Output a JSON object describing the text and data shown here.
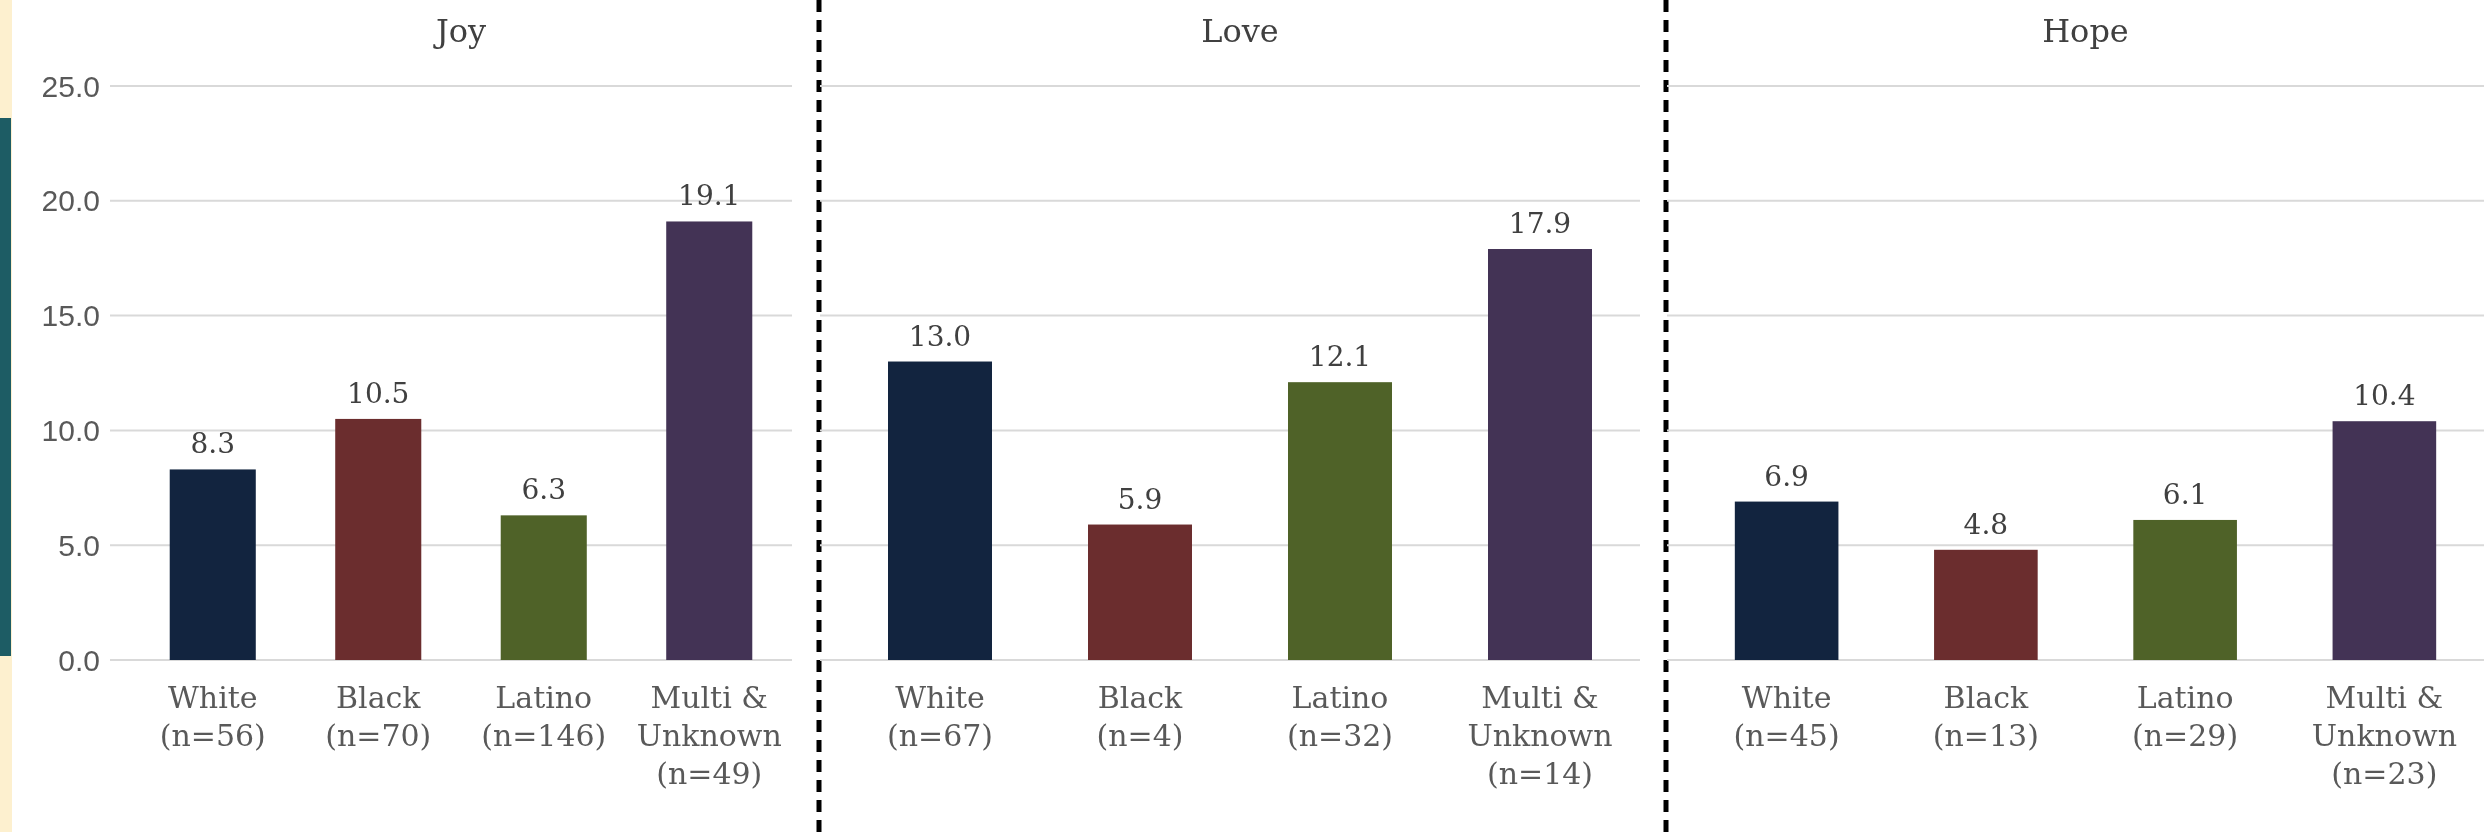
{
  "chart_data": [
    {
      "type": "bar",
      "title": "Joy",
      "categories": [
        "White\n(n=56)",
        "Black\n(n=70)",
        "Latino\n(n=146)",
        "Multi &\nUnknown\n(n=49)"
      ],
      "values": [
        8.3,
        10.5,
        6.3,
        19.1
      ],
      "value_labels": [
        "8.3",
        "10.5",
        "6.3",
        "19.1"
      ],
      "colors": [
        "#12243f",
        "#6b2d2e",
        "#4f6228",
        "#433355"
      ],
      "ylim": [
        0,
        25
      ],
      "yticks": [
        {
          "value": 0,
          "label": "0.0"
        },
        {
          "value": 5,
          "label": "5.0"
        },
        {
          "value": 10,
          "label": "10.0"
        },
        {
          "value": 15,
          "label": "15.0"
        },
        {
          "value": 20,
          "label": "20.0"
        },
        {
          "value": 25,
          "label": "25.0"
        }
      ],
      "grid": "y"
    },
    {
      "type": "bar",
      "title": "Love",
      "categories": [
        "White\n(n=67)",
        "Black\n(n=4)",
        "Latino\n(n=32)",
        "Multi &\nUnknown\n(n=14)"
      ],
      "values": [
        13.0,
        5.9,
        12.1,
        17.9
      ],
      "value_labels": [
        "13.0",
        "5.9",
        "12.1",
        "17.9"
      ],
      "colors": [
        "#12243f",
        "#6b2d2e",
        "#4f6228",
        "#433355"
      ],
      "ylim": [
        0,
        25
      ],
      "yticks": [
        0,
        5,
        10,
        15,
        20,
        25
      ],
      "grid": "y",
      "tick_labels": "x"
    },
    {
      "type": "bar",
      "title": "Hope",
      "categories": [
        "White\n(n=45)",
        "Black\n(n=13)",
        "Latino\n(n=29)",
        "Multi &\nUnknown\n(n=23)"
      ],
      "values": [
        6.9,
        4.8,
        6.1,
        10.4
      ],
      "value_labels": [
        "6.9",
        "4.8",
        "6.1",
        "10.4"
      ],
      "colors": [
        "#12243f",
        "#6b2d2e",
        "#4f6228",
        "#433355"
      ],
      "ylim": [
        0,
        25
      ],
      "yticks": [
        0,
        5,
        10,
        15,
        20,
        25
      ],
      "grid": "y",
      "tick_labels": "x"
    }
  ]
}
